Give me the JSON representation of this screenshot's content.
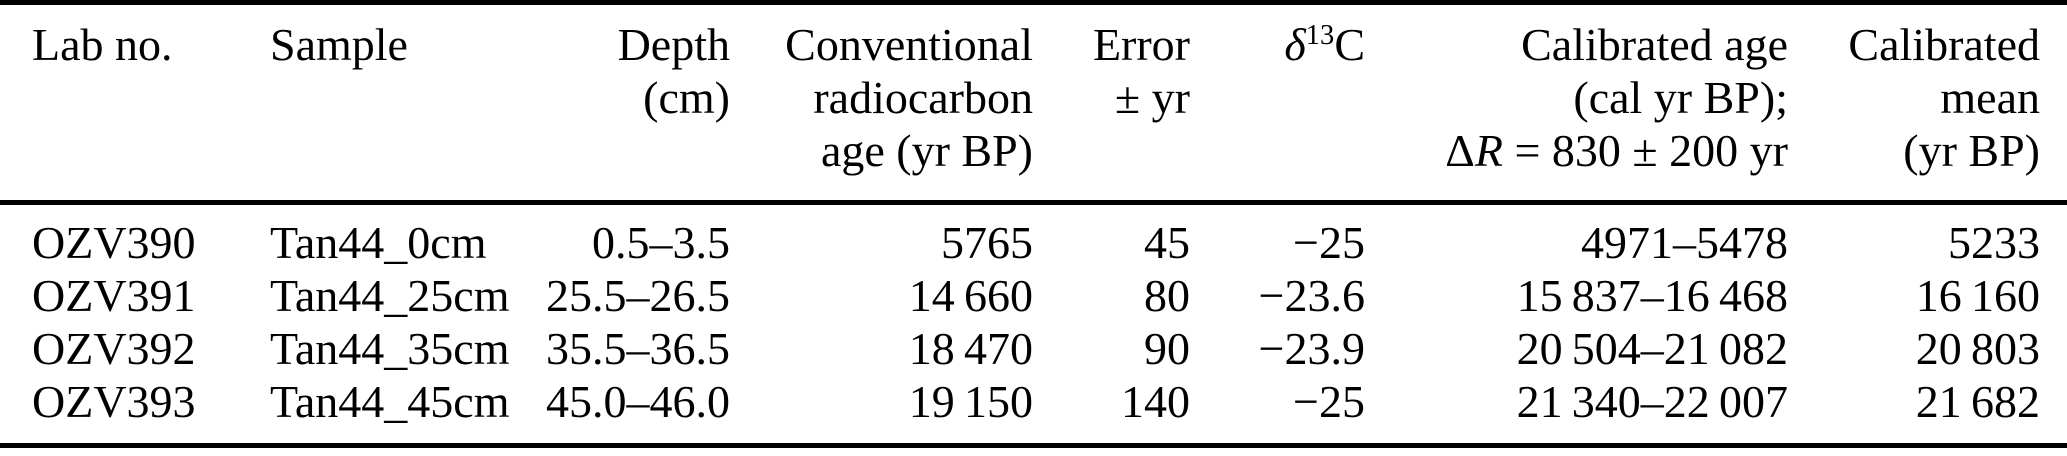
{
  "table": {
    "header": {
      "lab_no": "Lab no.",
      "sample": "Sample",
      "depth": {
        "line1": "Depth",
        "line2": "(cm)"
      },
      "conventional": {
        "line1": "Conventional",
        "line2": "radiocarbon",
        "line3": "age (yr BP)"
      },
      "error": {
        "line1": "Error",
        "line2": "± yr"
      },
      "d13c": {
        "delta": "δ",
        "sup": "13",
        "element": "C"
      },
      "calibrated_age": {
        "line1": "Calibrated age",
        "line2": "(cal yr BP);",
        "delta": "Δ",
        "r": "R",
        "equation_rest": " = 830 ± 200 yr"
      },
      "calibrated_mean": {
        "line1": "Calibrated",
        "line2": "mean",
        "line3": "(yr BP)"
      }
    },
    "rows": [
      {
        "lab_no": "OZV390",
        "sample": "Tan44_0cm",
        "depth_cm": "0.5–3.5",
        "conventional_age": "5765",
        "error": "45",
        "d13c": "−25",
        "calibrated_age": "4971–5478",
        "calibrated_mean": "5233"
      },
      {
        "lab_no": "OZV391",
        "sample": "Tan44_25cm",
        "depth_cm": "25.5–26.5",
        "conventional_age": "14 660",
        "error": "80",
        "d13c": "−23.6",
        "calibrated_age": "15 837–16 468",
        "calibrated_mean": "16 160"
      },
      {
        "lab_no": "OZV392",
        "sample": "Tan44_35cm",
        "depth_cm": "35.5–36.5",
        "conventional_age": "18 470",
        "error": "90",
        "d13c": "−23.9",
        "calibrated_age": "20 504–21 082",
        "calibrated_mean": "20 803"
      },
      {
        "lab_no": "OZV393",
        "sample": "Tan44_45cm",
        "depth_cm": "45.0–46.0",
        "conventional_age": "19 150",
        "error": "140",
        "d13c": "−25",
        "calibrated_age": "21 340–22 007",
        "calibrated_mean": "21 682"
      }
    ]
  }
}
